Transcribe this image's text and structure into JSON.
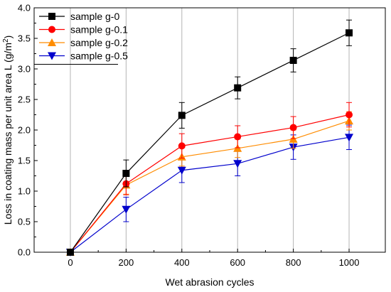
{
  "chart_data": {
    "type": "line",
    "xlabel": "Wet abrasion cycles",
    "ylabel": {
      "main": "Loss in coating mass per unit area L (g/m",
      "superscript": "2",
      "close": ")"
    },
    "xlim": [
      -130,
      1130
    ],
    "ylim": [
      0,
      4.0
    ],
    "xticks": [
      0,
      200,
      400,
      600,
      800,
      1000
    ],
    "yticks": [
      0.0,
      0.5,
      1.0,
      1.5,
      2.0,
      2.5,
      3.0,
      3.5,
      4.0
    ],
    "xtick_labels": [
      "0",
      "200",
      "400",
      "600",
      "800",
      "1000"
    ],
    "ytick_labels": [
      "0.0",
      "0.5",
      "1.0",
      "1.5",
      "2.0",
      "2.5",
      "3.0",
      "3.5",
      "4.0"
    ],
    "grid": "vertical",
    "legend_position": "top-left",
    "x": [
      0,
      200,
      400,
      600,
      800,
      1000
    ],
    "series": [
      {
        "name": "sample g-0",
        "color": "#000000",
        "marker": "square",
        "values": [
          0.0,
          1.29,
          2.24,
          2.69,
          3.14,
          3.59
        ],
        "errors": [
          0.0,
          0.22,
          0.21,
          0.18,
          0.19,
          0.21
        ]
      },
      {
        "name": "sample g-0.1",
        "color": "#ff0000",
        "marker": "circle",
        "values": [
          0.0,
          1.12,
          1.74,
          1.89,
          2.04,
          2.25
        ],
        "errors": [
          0.0,
          0.18,
          0.2,
          0.18,
          0.18,
          0.2
        ]
      },
      {
        "name": "sample g-0.2",
        "color": "#ff8c00",
        "marker": "triangle-up",
        "values": [
          0.0,
          1.1,
          1.56,
          1.7,
          1.85,
          2.15
        ],
        "errors": [
          0.0,
          0.15,
          0.15,
          0.15,
          0.15,
          0.15
        ]
      },
      {
        "name": "sample g-0.5",
        "color": "#0000cc",
        "marker": "triangle-down",
        "values": [
          0.0,
          0.7,
          1.34,
          1.45,
          1.72,
          1.88
        ],
        "errors": [
          0.0,
          0.2,
          0.2,
          0.2,
          0.2,
          0.2
        ]
      }
    ]
  }
}
